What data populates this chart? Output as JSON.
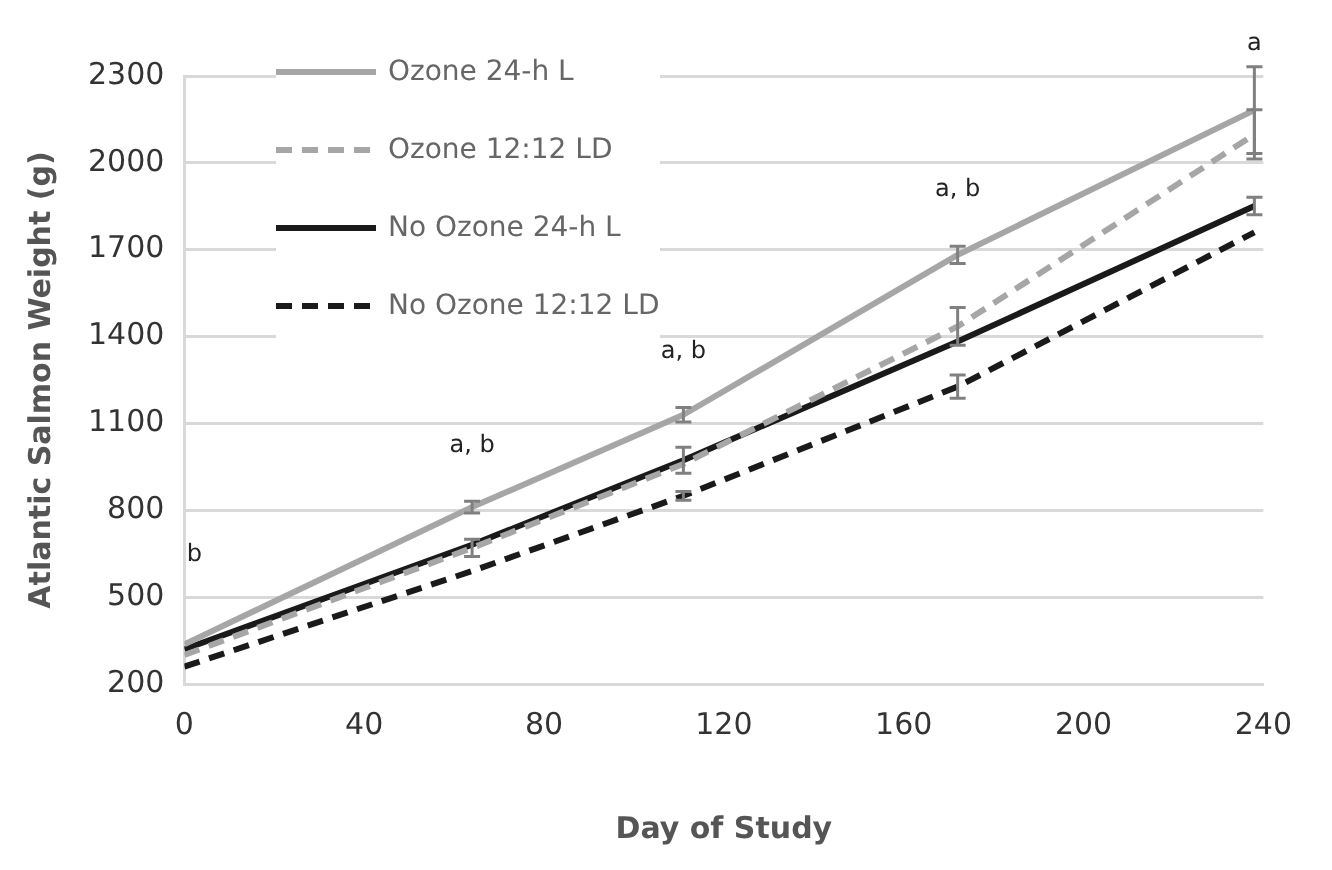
{
  "chart_data": {
    "type": "line",
    "xlabel": "Day of Study",
    "ylabel": "Atlantic Salmon Weight (g)",
    "x": [
      0,
      64,
      111,
      172,
      238
    ],
    "xlim": [
      0,
      240
    ],
    "xticks": [
      0,
      40,
      80,
      120,
      160,
      200,
      240
    ],
    "ylim": [
      200,
      2300
    ],
    "yticks": [
      200,
      500,
      800,
      1100,
      1400,
      1700,
      2000,
      2300
    ],
    "grid": "y",
    "legend": "top left",
    "series": [
      {
        "name": "Ozone 24-h L",
        "color": "#a6a6a6",
        "line_style": "solid",
        "values": [
          337,
          811,
          1130,
          1682,
          2182
        ],
        "errors": [
          null,
          20,
          25,
          30,
          150
        ]
      },
      {
        "name": "Ozone 12:12 LD",
        "color": "#a6a6a6",
        "line_style": "dashed",
        "values": [
          300,
          670,
          960,
          1435,
          2098
        ],
        "errors": [
          null,
          30,
          null,
          65,
          85
        ]
      },
      {
        "name": "No Ozone 24-h L",
        "color": "#1a1a1a",
        "line_style": "solid",
        "values": [
          320,
          681,
          973,
          1383,
          1851
        ],
        "errors": [
          null,
          null,
          45,
          null,
          30
        ]
      },
      {
        "name": "No Ozone 12:12 LD",
        "color": "#1a1a1a",
        "line_style": "dashed",
        "values": [
          260,
          590,
          850,
          1227,
          1760
        ],
        "errors": [
          null,
          null,
          15,
          40,
          null
        ]
      }
    ],
    "annotations": [
      "b",
      "a, b",
      "a, b",
      "a, b",
      "a"
    ]
  }
}
